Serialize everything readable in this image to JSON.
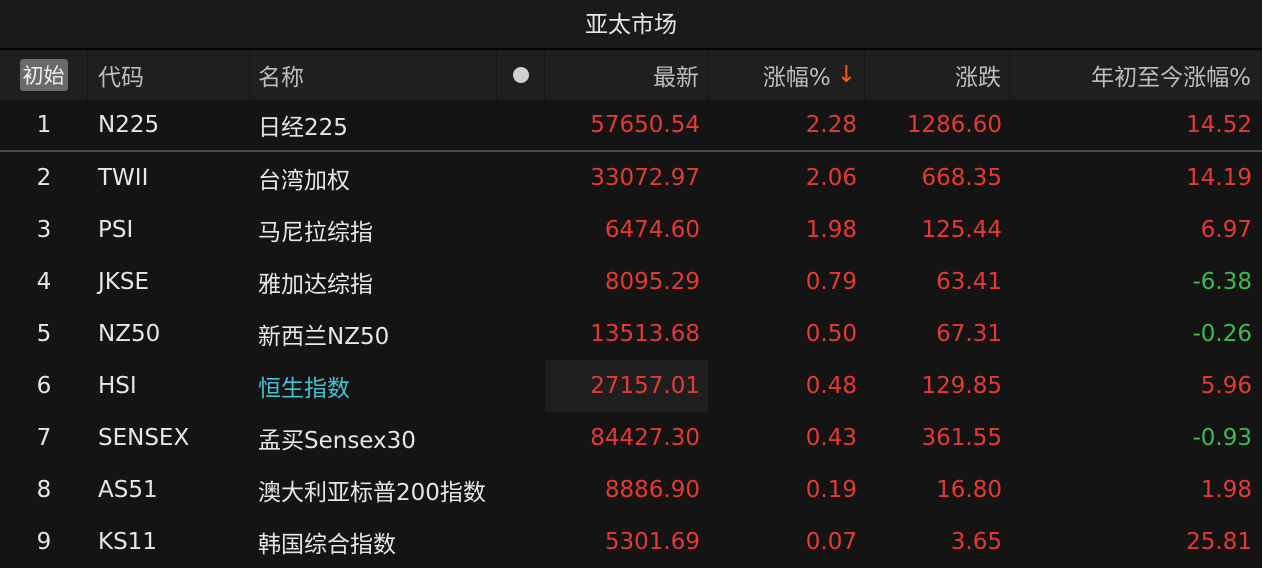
{
  "title": "亚太市场",
  "header": {
    "reset": "初始",
    "code": "代码",
    "name": "名称",
    "latest": "最新",
    "pct": "涨幅%",
    "sort_icon": "arrow-down-icon",
    "change": "涨跌",
    "ytd": "年初至今涨幅%"
  },
  "colors": {
    "up": "#e53935",
    "down": "#3dbb4b",
    "highlight": "#45c1d0",
    "sort_arrow": "#ff5a1f"
  },
  "rows": [
    {
      "idx": "1",
      "code": "N225",
      "name": "日经225",
      "latest": "57650.54",
      "pct": "2.28",
      "change": "1286.60",
      "ytd": "14.52"
    },
    {
      "idx": "2",
      "code": "TWII",
      "name": "台湾加权",
      "latest": "33072.97",
      "pct": "2.06",
      "change": "668.35",
      "ytd": "14.19"
    },
    {
      "idx": "3",
      "code": "PSI",
      "name": "马尼拉综指",
      "latest": "6474.60",
      "pct": "1.98",
      "change": "125.44",
      "ytd": "6.97"
    },
    {
      "idx": "4",
      "code": "JKSE",
      "name": "雅加达综指",
      "latest": "8095.29",
      "pct": "0.79",
      "change": "63.41",
      "ytd": "-6.38"
    },
    {
      "idx": "5",
      "code": "NZ50",
      "name": "新西兰NZ50",
      "latest": "13513.68",
      "pct": "0.50",
      "change": "67.31",
      "ytd": "-0.26"
    },
    {
      "idx": "6",
      "code": "HSI",
      "name": "恒生指数",
      "latest": "27157.01",
      "pct": "0.48",
      "change": "129.85",
      "ytd": "5.96"
    },
    {
      "idx": "7",
      "code": "SENSEX",
      "name": "孟买Sensex30",
      "latest": "84427.30",
      "pct": "0.43",
      "change": "361.55",
      "ytd": "-0.93"
    },
    {
      "idx": "8",
      "code": "AS51",
      "name": "澳大利亚标普200指数",
      "latest": "8886.90",
      "pct": "0.19",
      "change": "16.80",
      "ytd": "1.98"
    },
    {
      "idx": "9",
      "code": "KS11",
      "name": "韩国综合指数",
      "latest": "5301.69",
      "pct": "0.07",
      "change": "3.65",
      "ytd": "25.81"
    }
  ]
}
